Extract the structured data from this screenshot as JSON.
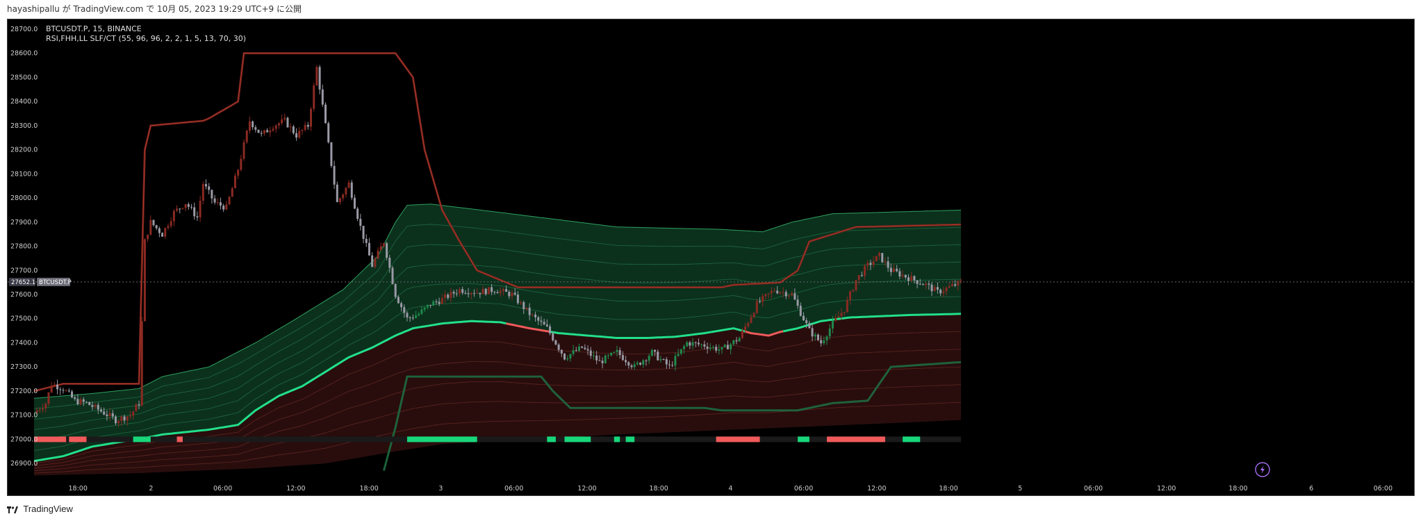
{
  "header": {
    "publish_line": "hayashipallu が TradingView.com で 10月 05, 2023 19:29 UTC+9 に公開"
  },
  "footer": {
    "brand": "TradingView"
  },
  "legend": {
    "symbol_line": "BTCUSDT.P, 15, BINANCE",
    "indicator_line": "RSI,FHH,LL SLF/CT (55, 96, 96, 2, 2, 1, 5, 13, 70, 30)"
  },
  "price_label": {
    "value": "27652.1",
    "symbol": "BTCUSDT.P"
  },
  "colors": {
    "background": "#000000",
    "candle_up": "#8b2a22",
    "candle_down": "#9a9aa6",
    "candle_green": "#1f8a4c",
    "baseline_bull": "#22e08a",
    "baseline_bear": "#f05a5a",
    "resistance": "#7a241c",
    "support": "#1d6b40",
    "band_green": "#0d3a22",
    "band_red": "#3a1212",
    "bar_green": "#18d67a",
    "bar_red": "#f05a5a"
  },
  "chart_data": {
    "type": "candlestick",
    "symbol": "BTCUSDT.P",
    "interval": "15",
    "exchange": "BINANCE",
    "y_ticks": [
      "28700.0",
      "28600.0",
      "28500.0",
      "28400.0",
      "28300.0",
      "28200.0",
      "28100.0",
      "28000.0",
      "27900.0",
      "27800.0",
      "27700.0",
      "27600.0",
      "27500.0",
      "27400.0",
      "27300.0",
      "27200.0",
      "27100.0",
      "27000.0",
      "26900.0"
    ],
    "x_ticks": [
      "18:00",
      "2",
      "06:00",
      "12:00",
      "18:00",
      "3",
      "06:00",
      "12:00",
      "18:00",
      "4",
      "06:00",
      "12:00",
      "18:00",
      "5",
      "06:00",
      "12:00",
      "18:00",
      "6",
      "06:00"
    ],
    "ylim": [
      26840,
      28740
    ],
    "last_price": 27652.1,
    "close_path": [
      [
        0,
        27110
      ],
      [
        4,
        27150
      ],
      [
        6,
        27230
      ],
      [
        10,
        27210
      ],
      [
        14,
        27160
      ],
      [
        18,
        27150
      ],
      [
        24,
        27110
      ],
      [
        28,
        27080
      ],
      [
        33,
        27100
      ],
      [
        36,
        27150
      ],
      [
        38,
        27820
      ],
      [
        40,
        27900
      ],
      [
        44,
        27850
      ],
      [
        48,
        27940
      ],
      [
        52,
        27980
      ],
      [
        56,
        27920
      ],
      [
        58,
        28060
      ],
      [
        62,
        27980
      ],
      [
        66,
        27960
      ],
      [
        70,
        28120
      ],
      [
        74,
        28320
      ],
      [
        78,
        28260
      ],
      [
        82,
        28300
      ],
      [
        86,
        28320
      ],
      [
        90,
        28260
      ],
      [
        94,
        28300
      ],
      [
        97,
        28540
      ],
      [
        100,
        28300
      ],
      [
        104,
        27980
      ],
      [
        108,
        28060
      ],
      [
        112,
        27880
      ],
      [
        116,
        27720
      ],
      [
        120,
        27820
      ],
      [
        124,
        27600
      ],
      [
        128,
        27500
      ],
      [
        132,
        27520
      ],
      [
        136,
        27560
      ],
      [
        140,
        27580
      ],
      [
        146,
        27620
      ],
      [
        152,
        27610
      ],
      [
        158,
        27620
      ],
      [
        164,
        27600
      ],
      [
        170,
        27520
      ],
      [
        176,
        27460
      ],
      [
        182,
        27340
      ],
      [
        188,
        27380
      ],
      [
        194,
        27320
      ],
      [
        200,
        27360
      ],
      [
        206,
        27300
      ],
      [
        212,
        27360
      ],
      [
        218,
        27300
      ],
      [
        224,
        27400
      ],
      [
        230,
        27390
      ],
      [
        236,
        27370
      ],
      [
        242,
        27420
      ],
      [
        248,
        27560
      ],
      [
        254,
        27620
      ],
      [
        260,
        27600
      ],
      [
        266,
        27450
      ],
      [
        270,
        27400
      ],
      [
        274,
        27480
      ],
      [
        278,
        27540
      ],
      [
        282,
        27660
      ],
      [
        286,
        27720
      ],
      [
        290,
        27760
      ],
      [
        294,
        27700
      ],
      [
        298,
        27680
      ],
      [
        302,
        27660
      ],
      [
        306,
        27640
      ],
      [
        310,
        27610
      ],
      [
        314,
        27630
      ],
      [
        318,
        27650
      ]
    ],
    "upper_resistance": [
      [
        0,
        27200
      ],
      [
        10,
        27230
      ],
      [
        36,
        27230
      ],
      [
        38,
        28200
      ],
      [
        40,
        28300
      ],
      [
        58,
        28320
      ],
      [
        60,
        28330
      ],
      [
        70,
        28400
      ],
      [
        72,
        28600
      ],
      [
        124,
        28600
      ],
      [
        130,
        28500
      ],
      [
        134,
        28200
      ],
      [
        140,
        27950
      ],
      [
        146,
        27820
      ],
      [
        152,
        27700
      ],
      [
        166,
        27630
      ],
      [
        236,
        27630
      ],
      [
        240,
        27640
      ],
      [
        256,
        27650
      ],
      [
        262,
        27700
      ],
      [
        266,
        27820
      ],
      [
        274,
        27850
      ],
      [
        282,
        27880
      ],
      [
        318,
        27890
      ]
    ],
    "lower_support": [
      [
        120,
        26870
      ],
      [
        124,
        27050
      ],
      [
        128,
        27260
      ],
      [
        136,
        27260
      ],
      [
        174,
        27260
      ],
      [
        178,
        27200
      ],
      [
        184,
        27130
      ],
      [
        230,
        27130
      ],
      [
        236,
        27120
      ],
      [
        262,
        27120
      ],
      [
        274,
        27150
      ],
      [
        286,
        27160
      ],
      [
        294,
        27300
      ],
      [
        318,
        27320
      ]
    ],
    "baseline": [
      [
        0,
        26910
      ],
      [
        10,
        26930
      ],
      [
        20,
        26970
      ],
      [
        30,
        26990
      ],
      [
        36,
        27000
      ],
      [
        44,
        27020
      ],
      [
        60,
        27040
      ],
      [
        70,
        27060
      ],
      [
        76,
        27120
      ],
      [
        84,
        27180
      ],
      [
        92,
        27220
      ],
      [
        100,
        27280
      ],
      [
        108,
        27340
      ],
      [
        116,
        27380
      ],
      [
        124,
        27430
      ],
      [
        130,
        27460
      ],
      [
        140,
        27480
      ],
      [
        150,
        27490
      ],
      [
        160,
        27485
      ],
      [
        170,
        27460
      ],
      [
        180,
        27440
      ],
      [
        190,
        27430
      ],
      [
        200,
        27420
      ],
      [
        210,
        27420
      ],
      [
        220,
        27425
      ],
      [
        230,
        27440
      ],
      [
        240,
        27460
      ],
      [
        246,
        27440
      ],
      [
        252,
        27430
      ],
      [
        256,
        27445
      ],
      [
        262,
        27460
      ],
      [
        270,
        27490
      ],
      [
        280,
        27505
      ],
      [
        290,
        27510
      ],
      [
        300,
        27515
      ],
      [
        318,
        27520
      ]
    ],
    "band_upper": [
      [
        0,
        27170
      ],
      [
        20,
        27190
      ],
      [
        36,
        27210
      ],
      [
        44,
        27260
      ],
      [
        60,
        27300
      ],
      [
        76,
        27400
      ],
      [
        90,
        27500
      ],
      [
        106,
        27620
      ],
      [
        118,
        27760
      ],
      [
        124,
        27900
      ],
      [
        128,
        27970
      ],
      [
        136,
        27975
      ],
      [
        160,
        27940
      ],
      [
        200,
        27880
      ],
      [
        236,
        27870
      ],
      [
        250,
        27860
      ],
      [
        260,
        27900
      ],
      [
        274,
        27935
      ],
      [
        318,
        27950
      ]
    ],
    "band_lower": [
      [
        0,
        26850
      ],
      [
        36,
        26860
      ],
      [
        76,
        26880
      ],
      [
        100,
        26900
      ],
      [
        124,
        26950
      ],
      [
        140,
        26980
      ],
      [
        200,
        27020
      ],
      [
        260,
        27050
      ],
      [
        300,
        27070
      ],
      [
        318,
        27080
      ]
    ],
    "signal_bar": {
      "green_segments": [
        [
          34,
          40
        ],
        [
          128,
          152
        ],
        [
          176,
          179
        ],
        [
          182,
          191
        ],
        [
          199,
          201
        ],
        [
          203,
          206
        ],
        [
          262,
          266
        ],
        [
          298,
          304
        ]
      ],
      "red_segments": [
        [
          0,
          11
        ],
        [
          12,
          18
        ],
        [
          49,
          51
        ],
        [
          234,
          249
        ],
        [
          272,
          292
        ]
      ]
    }
  }
}
